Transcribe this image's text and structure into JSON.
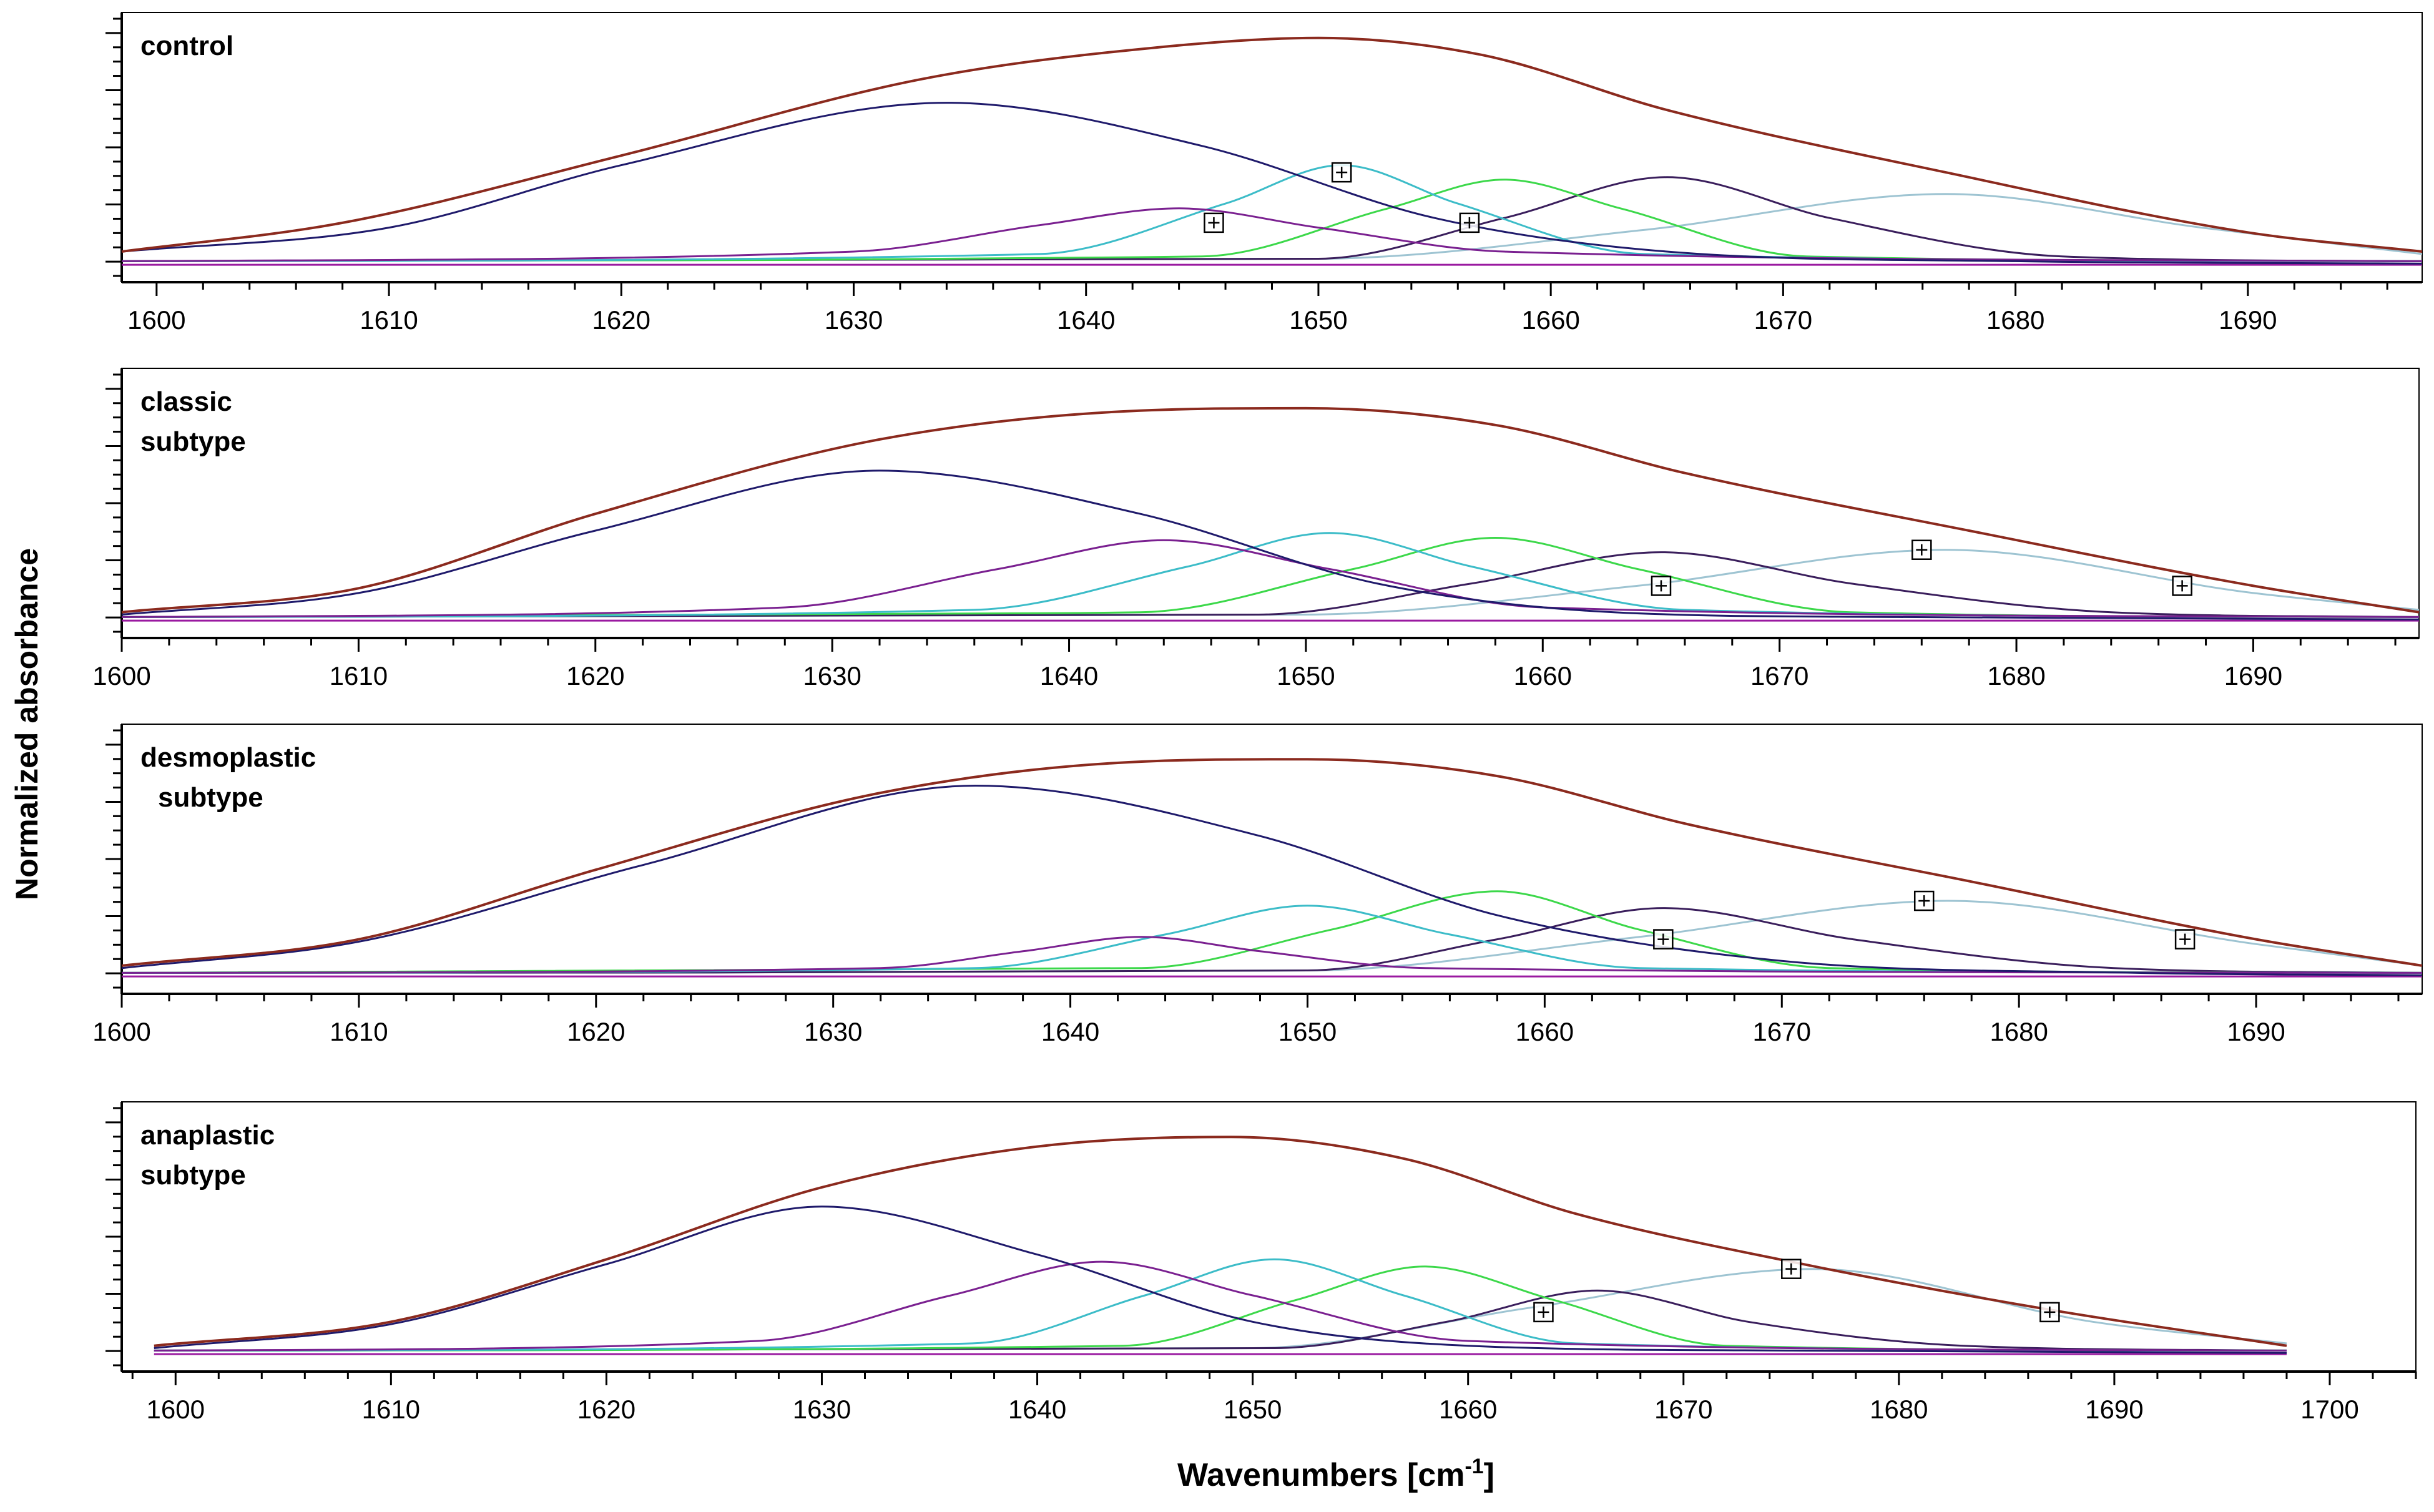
{
  "figure": {
    "ylabel": "Normalized absorbance",
    "xlabel_main": "Wavenumbers  [cm",
    "xlabel_sup": "-1",
    "xlabel_close": "]"
  },
  "colors": {
    "sum": "#8b2a1e",
    "c1": "#1f1a6b",
    "c2": "#7a2090",
    "c3": "#3cbcc8",
    "c4": "#3cd84a",
    "c5": "#3a1e5c",
    "c6": "#9ec4d2",
    "baseline": "#9a1aa0"
  },
  "chart_data": [
    {
      "type": "line",
      "title": "control",
      "title_lines": [
        "control"
      ],
      "xlabel": "",
      "ylabel": "",
      "xlim": [
        1598.5,
        1697.5
      ],
      "ylim": [
        0,
        1.0
      ],
      "xticks": [
        1600,
        1610,
        1620,
        1630,
        1640,
        1650,
        1660,
        1670,
        1680,
        1690
      ],
      "grid": false,
      "series": [
        {
          "name": "sum",
          "x": [
            1598.5,
            1608,
            1620,
            1633,
            1643,
            1650,
            1657,
            1665,
            1677,
            1690,
            1697.5
          ],
          "y": [
            0.06,
            0.18,
            0.46,
            0.78,
            0.91,
            0.95,
            0.88,
            0.65,
            0.39,
            0.14,
            0.06
          ]
        },
        {
          "name": "band 1634",
          "x": [
            1598.5,
            1610,
            1620,
            1634,
            1645,
            1655,
            1665,
            1680,
            1697.5
          ],
          "y": [
            0.06,
            0.16,
            0.42,
            0.68,
            0.5,
            0.2,
            0.06,
            0.02,
            0.01
          ]
        },
        {
          "name": "band 1644",
          "x": [
            1598.5,
            1630,
            1638,
            1644,
            1650,
            1658,
            1697.5
          ],
          "y": [
            0.02,
            0.06,
            0.17,
            0.24,
            0.16,
            0.06,
            0.02
          ]
        },
        {
          "name": "band 1651",
          "x": [
            1598.5,
            1638,
            1646,
            1651,
            1656,
            1664,
            1697.5
          ],
          "y": [
            0.02,
            0.05,
            0.26,
            0.42,
            0.26,
            0.05,
            0.02
          ]
        },
        {
          "name": "band 1658",
          "x": [
            1598.5,
            1645,
            1653,
            1658,
            1663,
            1671,
            1697.5
          ],
          "y": [
            0.02,
            0.04,
            0.24,
            0.36,
            0.24,
            0.04,
            0.02
          ]
        },
        {
          "name": "band 1665",
          "x": [
            1598.5,
            1650,
            1658,
            1665,
            1672,
            1682,
            1697.5
          ],
          "y": [
            0.02,
            0.03,
            0.2,
            0.37,
            0.2,
            0.04,
            0.02
          ]
        },
        {
          "name": "band 1677",
          "x": [
            1598.5,
            1650,
            1664,
            1677,
            1688,
            1697.5
          ],
          "y": [
            0.02,
            0.03,
            0.15,
            0.3,
            0.16,
            0.05
          ]
        }
      ],
      "markers": [
        {
          "x": 1645.5,
          "y": 0.18
        },
        {
          "x": 1651,
          "y": 0.39
        },
        {
          "x": 1656.5,
          "y": 0.18
        }
      ]
    },
    {
      "type": "line",
      "title": "classic subtype",
      "title_lines": [
        "classic",
        "subtype"
      ],
      "xlabel": "",
      "ylabel": "",
      "xlim": [
        1600,
        1697
      ],
      "ylim": [
        0,
        1.0
      ],
      "xticks": [
        1600,
        1610,
        1620,
        1630,
        1640,
        1650,
        1660,
        1670,
        1680,
        1690
      ],
      "grid": false,
      "series": [
        {
          "name": "sum",
          "x": [
            1600,
            1610,
            1620,
            1632,
            1643,
            1650,
            1658,
            1666,
            1678,
            1690,
            1697
          ],
          "y": [
            0.04,
            0.14,
            0.45,
            0.76,
            0.88,
            0.89,
            0.82,
            0.62,
            0.38,
            0.15,
            0.04
          ]
        },
        {
          "name": "band 1632",
          "x": [
            1600,
            1610,
            1620,
            1632,
            1643,
            1653,
            1663,
            1675,
            1697
          ],
          "y": [
            0.03,
            0.12,
            0.38,
            0.63,
            0.45,
            0.16,
            0.04,
            0.02,
            0.01
          ]
        },
        {
          "name": "band 1644",
          "x": [
            1600,
            1628,
            1637,
            1644,
            1651,
            1660,
            1697
          ],
          "y": [
            0.02,
            0.06,
            0.22,
            0.34,
            0.22,
            0.06,
            0.02
          ]
        },
        {
          "name": "band 1651",
          "x": [
            1600,
            1636,
            1645,
            1651,
            1657,
            1666,
            1697
          ],
          "y": [
            0.02,
            0.05,
            0.23,
            0.37,
            0.23,
            0.05,
            0.02
          ]
        },
        {
          "name": "band 1658",
          "x": [
            1600,
            1643,
            1652,
            1658,
            1664,
            1673,
            1697
          ],
          "y": [
            0.02,
            0.04,
            0.22,
            0.35,
            0.22,
            0.04,
            0.02
          ]
        },
        {
          "name": "band 1665",
          "x": [
            1600,
            1648,
            1657,
            1665,
            1673,
            1684,
            1697
          ],
          "y": [
            0.02,
            0.03,
            0.16,
            0.29,
            0.16,
            0.04,
            0.02
          ]
        },
        {
          "name": "band 1677",
          "x": [
            1600,
            1650,
            1664,
            1677,
            1690,
            1697
          ],
          "y": [
            0.02,
            0.03,
            0.15,
            0.3,
            0.12,
            0.05
          ]
        }
      ],
      "markers": [
        {
          "x": 1665,
          "y": 0.15
        },
        {
          "x": 1676,
          "y": 0.3
        },
        {
          "x": 1687,
          "y": 0.15
        }
      ]
    },
    {
      "type": "line",
      "title": "desmoplastic subtype",
      "title_lines": [
        "desmoplastic",
        "subtype"
      ],
      "xlabel": "",
      "ylabel": "",
      "xlim": [
        1600,
        1697
      ],
      "ylim": [
        0,
        1.0
      ],
      "xticks": [
        1600,
        1610,
        1620,
        1630,
        1640,
        1650,
        1660,
        1670,
        1680,
        1690
      ],
      "grid": false,
      "series": [
        {
          "name": "sum",
          "x": [
            1600,
            1610,
            1620,
            1632,
            1643,
            1650,
            1658,
            1666,
            1678,
            1690,
            1697
          ],
          "y": [
            0.05,
            0.16,
            0.45,
            0.77,
            0.9,
            0.91,
            0.84,
            0.64,
            0.4,
            0.16,
            0.05
          ]
        },
        {
          "name": "band 1636",
          "x": [
            1600,
            1610,
            1622,
            1636,
            1648,
            1658,
            1670,
            1685,
            1697
          ],
          "y": [
            0.04,
            0.15,
            0.47,
            0.8,
            0.59,
            0.26,
            0.07,
            0.02,
            0.01
          ]
        },
        {
          "name": "band 1643",
          "x": [
            1600,
            1632,
            1638,
            1643,
            1648,
            1655,
            1697
          ],
          "y": [
            0.02,
            0.04,
            0.11,
            0.17,
            0.11,
            0.04,
            0.02
          ]
        },
        {
          "name": "band 1650",
          "x": [
            1600,
            1636,
            1644,
            1650,
            1656,
            1664,
            1697
          ],
          "y": [
            0.02,
            0.04,
            0.18,
            0.3,
            0.18,
            0.04,
            0.02
          ]
        },
        {
          "name": "band 1658",
          "x": [
            1600,
            1643,
            1651,
            1658,
            1664,
            1672,
            1697
          ],
          "y": [
            0.02,
            0.04,
            0.2,
            0.36,
            0.2,
            0.04,
            0.02
          ]
        },
        {
          "name": "band 1665",
          "x": [
            1600,
            1650,
            1658,
            1665,
            1673,
            1684,
            1697
          ],
          "y": [
            0.02,
            0.03,
            0.16,
            0.29,
            0.16,
            0.04,
            0.02
          ]
        },
        {
          "name": "band 1677",
          "x": [
            1600,
            1650,
            1664,
            1677,
            1690,
            1697
          ],
          "y": [
            0.02,
            0.03,
            0.17,
            0.32,
            0.14,
            0.05
          ]
        }
      ],
      "markers": [
        {
          "x": 1665,
          "y": 0.16
        },
        {
          "x": 1676,
          "y": 0.32
        },
        {
          "x": 1687,
          "y": 0.16
        }
      ]
    },
    {
      "type": "line",
      "title": "anaplastic subtype",
      "title_lines": [
        "anaplastic",
        "subtype"
      ],
      "xlabel": "",
      "ylabel": "",
      "xlim": [
        1597.5,
        1704
      ],
      "ylim": [
        0,
        1.0
      ],
      "xticks": [
        1600,
        1610,
        1620,
        1630,
        1640,
        1650,
        1660,
        1670,
        1680,
        1690,
        1700
      ],
      "grid": false,
      "series": [
        {
          "name": "sum",
          "x": [
            1599,
            1610,
            1620,
            1630,
            1640,
            1649,
            1657,
            1665,
            1675,
            1687,
            1698
          ],
          "y": [
            0.04,
            0.14,
            0.4,
            0.7,
            0.87,
            0.91,
            0.82,
            0.59,
            0.39,
            0.19,
            0.04
          ]
        },
        {
          "name": "band 1630",
          "x": [
            1599,
            1610,
            1620,
            1630,
            1640,
            1650,
            1660,
            1675,
            1698
          ],
          "y": [
            0.03,
            0.13,
            0.38,
            0.62,
            0.42,
            0.14,
            0.04,
            0.02,
            0.01
          ]
        },
        {
          "name": "band 1643",
          "x": [
            1599,
            1627,
            1636,
            1643,
            1650,
            1660,
            1698
          ],
          "y": [
            0.02,
            0.06,
            0.25,
            0.39,
            0.25,
            0.06,
            0.02
          ]
        },
        {
          "name": "band 1651",
          "x": [
            1599,
            1637,
            1645,
            1651,
            1657,
            1665,
            1698
          ],
          "y": [
            0.02,
            0.05,
            0.25,
            0.4,
            0.25,
            0.05,
            0.02
          ]
        },
        {
          "name": "band 1658",
          "x": [
            1599,
            1644,
            1652,
            1658,
            1664,
            1672,
            1698
          ],
          "y": [
            0.02,
            0.04,
            0.23,
            0.37,
            0.23,
            0.04,
            0.02
          ]
        },
        {
          "name": "band 1666",
          "x": [
            1599,
            1651,
            1659,
            1666,
            1673,
            1683,
            1698
          ],
          "y": [
            0.02,
            0.03,
            0.14,
            0.27,
            0.14,
            0.04,
            0.02
          ]
        },
        {
          "name": "band 1676",
          "x": [
            1599,
            1650,
            1663,
            1676,
            1689,
            1698
          ],
          "y": [
            0.02,
            0.03,
            0.2,
            0.36,
            0.14,
            0.05
          ]
        }
      ],
      "markers": [
        {
          "x": 1663.5,
          "y": 0.18
        },
        {
          "x": 1675,
          "y": 0.36
        },
        {
          "x": 1687,
          "y": 0.18
        }
      ]
    }
  ]
}
